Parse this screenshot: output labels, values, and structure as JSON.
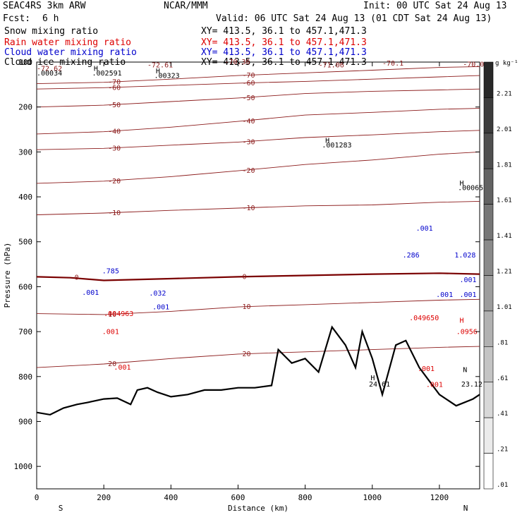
{
  "header": {
    "model": "SEAC4RS  3km ARW",
    "org": "NCAR/MMM",
    "init": "Init: 00 UTC Sat 24 Aug 13",
    "fcst_label": "Fcst:",
    "fcst_value": "6 h",
    "valid": "Valid: 06 UTC Sat 24 Aug 13 (01 CDT Sat 24 Aug 13)"
  },
  "fields": [
    {
      "name": "Snow mixing ratio",
      "xy": "XY= 413.5, 36.1 to 457.1,471.3",
      "color": "#000000"
    },
    {
      "name": "Rain water mixing ratio",
      "xy": "XY= 413.5, 36.1 to 457.1,471.3",
      "color": "#dd0000"
    },
    {
      "name": "Cloud water mixing ratio",
      "xy": "XY= 413.5, 36.1 to 457.1,471.3",
      "color": "#0000cc"
    },
    {
      "name": "Cloud ice mixing ratio",
      "xy": "XY= 413.5, 36.1 to 457.1,471.3",
      "color": "#000000"
    }
  ],
  "colorbar": {
    "unit": "g kg⁻¹",
    "labels": [
      "2.21",
      "2.01",
      "1.81",
      "1.61",
      "1.41",
      "1.21",
      "1.01",
      ".81",
      ".61",
      ".41",
      ".21",
      ".01"
    ]
  },
  "colors": {
    "temperature": "#8b1a1a",
    "freezing_line": "#7a0000",
    "terrain": "#000000",
    "rain": "#dd0000",
    "cloud_water": "#0000cc"
  },
  "chart_data": {
    "type": "cross-section",
    "xlabel": "Distance (km)",
    "ylabel": "Pressure (hPa)",
    "xlim": [
      0,
      1320
    ],
    "ylim": [
      1050,
      100
    ],
    "x_ticks": [
      "0",
      "200",
      "400",
      "600",
      "800",
      "1000",
      "1200"
    ],
    "y_ticks": [
      "100",
      "200",
      "300",
      "400",
      "500",
      "600",
      "700",
      "800",
      "900",
      "1000"
    ],
    "x_ends": {
      "left": "S",
      "right": "N"
    },
    "temperature_contours": [
      {
        "label": "-70",
        "points": [
          [
            0,
            148
          ],
          [
            200,
            145
          ],
          [
            400,
            138
          ],
          [
            600,
            130
          ],
          [
            800,
            124
          ],
          [
            1000,
            118
          ],
          [
            1200,
            112
          ],
          [
            1320,
            110
          ]
        ]
      },
      {
        "label": "-60",
        "points": [
          [
            0,
            160
          ],
          [
            200,
            157
          ],
          [
            400,
            152
          ],
          [
            600,
            147
          ],
          [
            800,
            143
          ],
          [
            1000,
            138
          ],
          [
            1200,
            133
          ],
          [
            1320,
            130
          ]
        ]
      },
      {
        "label": "-50",
        "points": [
          [
            0,
            200
          ],
          [
            200,
            196
          ],
          [
            400,
            188
          ],
          [
            600,
            180
          ],
          [
            800,
            170
          ],
          [
            1000,
            165
          ],
          [
            1200,
            162
          ],
          [
            1320,
            160
          ]
        ]
      },
      {
        "label": "-40",
        "points": [
          [
            0,
            260
          ],
          [
            200,
            255
          ],
          [
            400,
            245
          ],
          [
            600,
            232
          ],
          [
            800,
            218
          ],
          [
            1000,
            212
          ],
          [
            1200,
            205
          ],
          [
            1320,
            203
          ]
        ]
      },
      {
        "label": "-30",
        "points": [
          [
            0,
            295
          ],
          [
            200,
            292
          ],
          [
            400,
            285
          ],
          [
            600,
            278
          ],
          [
            800,
            268
          ],
          [
            1000,
            262
          ],
          [
            1200,
            255
          ],
          [
            1320,
            252
          ]
        ]
      },
      {
        "label": "-20",
        "points": [
          [
            0,
            370
          ],
          [
            200,
            365
          ],
          [
            400,
            355
          ],
          [
            600,
            342
          ],
          [
            800,
            328
          ],
          [
            1000,
            318
          ],
          [
            1200,
            305
          ],
          [
            1320,
            300
          ]
        ]
      },
      {
        "label": "-10",
        "points": [
          [
            0,
            440
          ],
          [
            200,
            436
          ],
          [
            400,
            430
          ],
          [
            600,
            425
          ],
          [
            800,
            420
          ],
          [
            1000,
            418
          ],
          [
            1200,
            412
          ],
          [
            1320,
            410
          ]
        ]
      },
      {
        "label": "0",
        "points": [
          [
            0,
            578
          ],
          [
            100,
            580
          ],
          [
            200,
            586
          ],
          [
            400,
            582
          ],
          [
            600,
            578
          ],
          [
            800,
            575
          ],
          [
            1000,
            572
          ],
          [
            1200,
            570
          ],
          [
            1320,
            572
          ]
        ]
      },
      {
        "label": "10",
        "points": [
          [
            0,
            660
          ],
          [
            200,
            662
          ],
          [
            400,
            655
          ],
          [
            600,
            645
          ],
          [
            800,
            640
          ],
          [
            1000,
            635
          ],
          [
            1200,
            630
          ],
          [
            1320,
            628
          ]
        ]
      },
      {
        "label": "20",
        "points": [
          [
            0,
            780
          ],
          [
            200,
            772
          ],
          [
            400,
            760
          ],
          [
            600,
            750
          ],
          [
            800,
            745
          ],
          [
            1000,
            740
          ],
          [
            1200,
            735
          ],
          [
            1320,
            733
          ]
        ]
      }
    ],
    "terrain": [
      [
        0,
        880
      ],
      [
        40,
        885
      ],
      [
        80,
        870
      ],
      [
        120,
        862
      ],
      [
        150,
        858
      ],
      [
        200,
        850
      ],
      [
        240,
        848
      ],
      [
        280,
        862
      ],
      [
        300,
        830
      ],
      [
        330,
        825
      ],
      [
        360,
        835
      ],
      [
        400,
        845
      ],
      [
        450,
        840
      ],
      [
        500,
        830
      ],
      [
        550,
        830
      ],
      [
        600,
        825
      ],
      [
        650,
        825
      ],
      [
        700,
        820
      ],
      [
        720,
        740
      ],
      [
        760,
        770
      ],
      [
        800,
        760
      ],
      [
        840,
        790
      ],
      [
        880,
        690
      ],
      [
        920,
        730
      ],
      [
        950,
        780
      ],
      [
        970,
        700
      ],
      [
        1000,
        760
      ],
      [
        1030,
        840
      ],
      [
        1070,
        730
      ],
      [
        1100,
        720
      ],
      [
        1140,
        780
      ],
      [
        1160,
        800
      ],
      [
        1200,
        840
      ],
      [
        1250,
        865
      ],
      [
        1300,
        850
      ],
      [
        1320,
        840
      ]
    ],
    "annotations": [
      {
        "text": "-72.62",
        "x": 0,
        "y": 120,
        "color": "#8b1a1a"
      },
      {
        "text": "-72.61",
        "x": 330,
        "y": 112,
        "color": "#8b1a1a"
      },
      {
        "text": "-70.36",
        "x": 560,
        "y": 105,
        "color": "#8b1a1a"
      },
      {
        "text": "-71.06",
        "x": 840,
        "y": 112,
        "color": "#8b1a1a"
      },
      {
        "text": "-70.1",
        "x": 1030,
        "y": 108,
        "color": "#8b1a1a"
      },
      {
        "text": "-70.0",
        "x": 1270,
        "y": 110,
        "color": "#8b1a1a"
      },
      {
        "text": ".00034",
        "x": 0,
        "y": 130,
        "color": "#000000"
      },
      {
        "text": "H",
        "x": 170,
        "y": 120,
        "color": "#000000"
      },
      {
        "text": ".002591",
        "x": 165,
        "y": 130,
        "color": "#000000"
      },
      {
        "text": "H",
        "x": 355,
        "y": 125,
        "color": "#000000"
      },
      {
        "text": ".00323",
        "x": 350,
        "y": 135,
        "color": "#000000"
      },
      {
        "text": "H",
        "x": 860,
        "y": 280,
        "color": "#000000"
      },
      {
        "text": ".001283",
        "x": 850,
        "y": 290,
        "color": "#000000"
      },
      {
        "text": "H",
        "x": 1260,
        "y": 375,
        "color": "#000000"
      },
      {
        "text": ".00065",
        "x": 1255,
        "y": 385,
        "color": "#000000"
      },
      {
        "text": ".785",
        "x": 195,
        "y": 570,
        "color": "#0000cc"
      },
      {
        "text": ".001",
        "x": 135,
        "y": 618,
        "color": "#0000cc"
      },
      {
        "text": ".032",
        "x": 335,
        "y": 620,
        "color": "#0000cc"
      },
      {
        "text": ".001",
        "x": 345,
        "y": 650,
        "color": "#0000cc"
      },
      {
        "text": ".286",
        "x": 1090,
        "y": 535,
        "color": "#0000cc"
      },
      {
        "text": ".001",
        "x": 1130,
        "y": 475,
        "color": "#0000cc"
      },
      {
        "text": ".001",
        "x": 1190,
        "y": 623,
        "color": "#0000cc"
      },
      {
        "text": "1.028",
        "x": 1245,
        "y": 535,
        "color": "#0000cc"
      },
      {
        "text": ".001",
        "x": 1260,
        "y": 590,
        "color": "#0000cc"
      },
      {
        "text": ".001",
        "x": 1260,
        "y": 623,
        "color": "#0000cc"
      },
      {
        "text": ".004963",
        "x": 200,
        "y": 665,
        "color": "#dd0000"
      },
      {
        "text": ".001",
        "x": 195,
        "y": 705,
        "color": "#dd0000"
      },
      {
        "text": ".001",
        "x": 230,
        "y": 785,
        "color": "#dd0000"
      },
      {
        "text": ".049650",
        "x": 1110,
        "y": 675,
        "color": "#dd0000"
      },
      {
        "text": ".001",
        "x": 1135,
        "y": 788,
        "color": "#dd0000"
      },
      {
        "text": ".001",
        "x": 1160,
        "y": 823,
        "color": "#dd0000"
      },
      {
        "text": ".0956",
        "x": 1250,
        "y": 705,
        "color": "#dd0000"
      },
      {
        "text": "H",
        "x": 1260,
        "y": 680,
        "color": "#dd0000"
      },
      {
        "text": "H",
        "x": 995,
        "y": 808,
        "color": "#000000"
      },
      {
        "text": "24.61",
        "x": 990,
        "y": 822,
        "color": "#000000"
      },
      {
        "text": "N",
        "x": 1270,
        "y": 790,
        "color": "#000000"
      },
      {
        "text": "23.12",
        "x": 1265,
        "y": 822,
        "color": "#000000"
      }
    ]
  }
}
